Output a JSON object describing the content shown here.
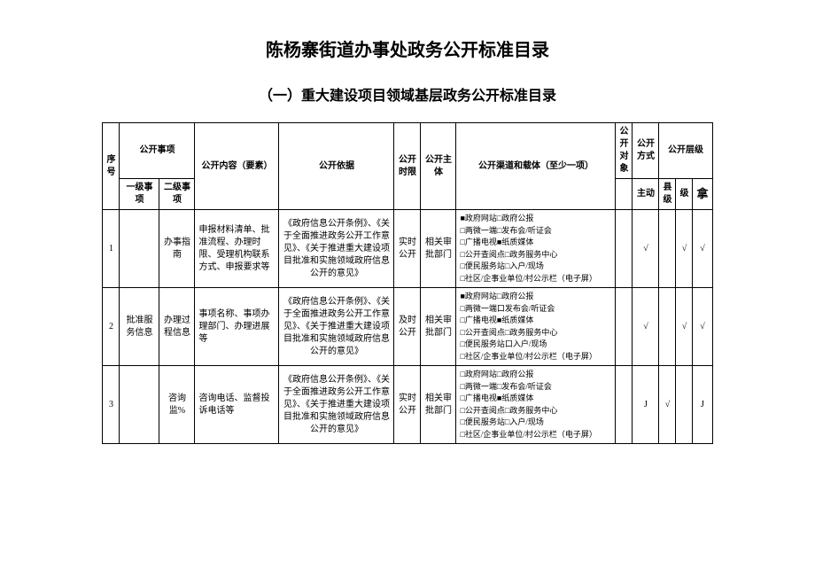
{
  "title": "陈杨寨街道办事处政务公开标准目录",
  "subtitle": "（一）重大建设项目领域基层政务公开标准目录",
  "headers": {
    "seq": "序号",
    "item": "公开事项",
    "item_l1": "一级事项",
    "item_l2": "二级事项",
    "content": "公开内容（要素）",
    "basis": "公开依据",
    "timelimit": "公开时限",
    "subject": "公开主体",
    "channel": "公开渠道和载体（至少一项）",
    "target": "公开对象",
    "method": "公开方式",
    "level": "公开层级",
    "active": "主动",
    "county": "县级",
    "lv": "级",
    "na": "拿"
  },
  "rows": [
    {
      "seq": "1",
      "l1": "",
      "l2": "办事指南",
      "content": "申报材料清单、批准流程、办理时限、受理机构联系方式、申报要求等",
      "basis": "《政府信息公开条例》、《关于全面推进政务公开工作意见》、《关于推进重大建设项目批准和实施领域政府信息公开的意见》",
      "timelimit": "实时公开",
      "subject": "相关审批部门",
      "channel": "■政府网站□政府公报\n□两微一端□发布会/听证会\n□广播电视■纸质媒体\n□公开查阅点□政务服务中心\n□便民服务站□入户/现场\n□社区/企事业单位/村公示栏（电子屏）",
      "c_target": "",
      "c_active": "√",
      "c_county": "",
      "c_lv": "√",
      "c_na": "√"
    },
    {
      "seq": "2",
      "l1": "批准服务信息",
      "l2": "办理过程信息",
      "content": "事项名称、事项办理部门、办理进展等",
      "basis": "《政府信息公开条例》、《关于全面推进政务公开工作意见》、《关于推进重大建设项目批准和实施领域政府信息公开的意见》",
      "timelimit": "及时公开",
      "subject": "相关审批部门",
      "channel": "■政府网站□政府公报\n□两微一端口发布会/听证会\n□广播电视■纸质媒体\n□公开查阅点□政务服务中心\n□便民服务站口入户/现场\n□社区/企事业单位/村公示栏（电子屏）",
      "c_target": "",
      "c_active": "√",
      "c_county": "",
      "c_lv": "√",
      "c_na": "√"
    },
    {
      "seq": "3",
      "l1": "",
      "l2": "咨询监%",
      "content": "咨询电话、监督投诉电话等",
      "basis": "《政府信息公开条例》、《关于全面推进政务公开工作意见》、《关于推进重大建设项目批准和实施领域政府信息公开的意见》",
      "timelimit": "实时公开",
      "subject": "相关审批部门",
      "channel": "□政府网站□政府公报\n□两微一端□发布会/听证会\n□广播电视■纸质媒体\n□公开查阅点□政务服务中心\n□便民服务站□入户/现场\n□社区/企事业单位/村公示栏（电子屏）",
      "c_target": "",
      "c_active": "J",
      "c_county": "√",
      "c_lv": "",
      "c_na": "J"
    }
  ]
}
